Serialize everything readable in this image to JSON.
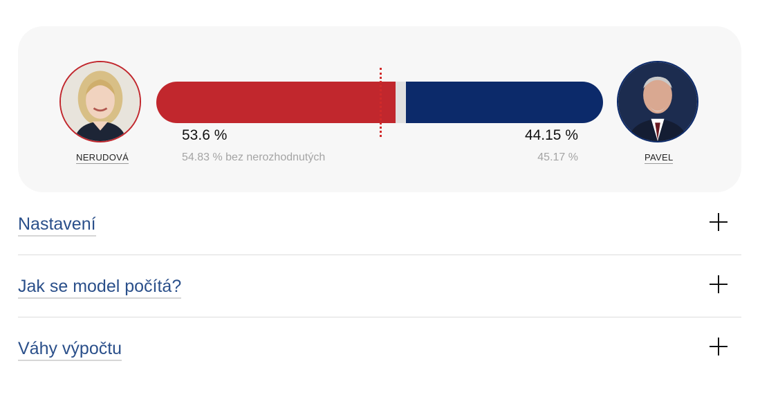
{
  "candidates": {
    "left": {
      "name": "NERUDOVÁ",
      "percent": "53.6 %",
      "percent_excl": "54.83 % bez nerozhodnutých",
      "share": 0.536,
      "color": "#c1272d"
    },
    "right": {
      "name": "PAVEL",
      "percent": "44.15 %",
      "percent_excl": "45.17 %",
      "share": 0.4415,
      "color": "#0c2a6a"
    }
  },
  "threshold": {
    "share": 0.5,
    "color": "#d12a2a"
  },
  "accordion": [
    {
      "label": "Nastavení"
    },
    {
      "label": "Jak se model počítá?"
    },
    {
      "label": "Váhy výpočtu"
    }
  ]
}
